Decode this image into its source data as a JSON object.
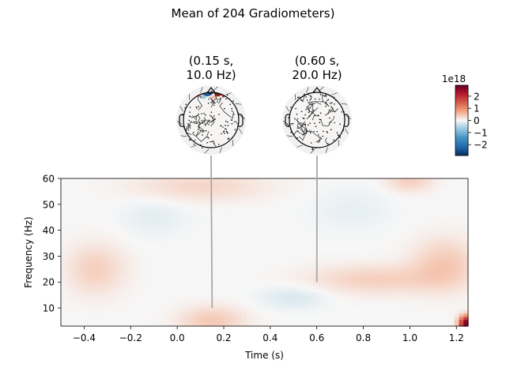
{
  "chart_data": {
    "type": "heatmap",
    "title": "Mean of 204 Gradiometers)",
    "xlabel": "Time (s)",
    "ylabel": "Frequency (Hz)",
    "xlim": [
      -0.5,
      1.25
    ],
    "ylim": [
      3,
      60
    ],
    "xticks": [
      -0.4,
      -0.2,
      0.0,
      0.2,
      0.4,
      0.6,
      0.8,
      1.0,
      1.2
    ],
    "xtick_labels": [
      "−0.4",
      "−0.2",
      "0.0",
      "0.2",
      "0.4",
      "0.6",
      "0.8",
      "1.0",
      "1.2"
    ],
    "yticks": [
      10,
      20,
      30,
      40,
      50,
      60
    ],
    "ytick_labels": [
      "10",
      "20",
      "30",
      "40",
      "50",
      "60"
    ],
    "colormap": "RdBu_r",
    "colorbar": {
      "multiplier": "1e18",
      "ticks": [
        2,
        1,
        0,
        -1,
        -2
      ],
      "tick_labels": [
        "2",
        "1",
        "0",
        "−1",
        "−2"
      ],
      "range": [
        -2.9,
        2.9
      ]
    },
    "blobs": [
      {
        "t": 0.15,
        "f": 5,
        "st": 0.1,
        "sf": 4,
        "a": 0.14
      },
      {
        "t": -0.35,
        "f": 25,
        "st": 0.09,
        "sf": 7,
        "a": 0.12
      },
      {
        "t": 0.1,
        "f": 57,
        "st": 0.2,
        "sf": 4,
        "a": 0.1
      },
      {
        "t": 1.0,
        "f": 59,
        "st": 0.07,
        "sf": 3,
        "a": 0.12
      },
      {
        "t": 0.85,
        "f": 21,
        "st": 0.2,
        "sf": 4,
        "a": 0.12
      },
      {
        "t": 1.15,
        "f": 27,
        "st": 0.1,
        "sf": 7,
        "a": 0.14
      },
      {
        "t": 0.5,
        "f": 14,
        "st": 0.1,
        "sf": 3,
        "a": -0.08
      },
      {
        "t": -0.1,
        "f": 45,
        "st": 0.1,
        "sf": 5,
        "a": -0.05
      },
      {
        "t": 0.75,
        "f": 48,
        "st": 0.12,
        "sf": 6,
        "a": -0.04
      },
      {
        "t": 1.24,
        "f": 4,
        "st": 0.02,
        "sf": 2,
        "a": 0.95
      }
    ],
    "topomaps": [
      {
        "title_line1": "(0.15 s,",
        "title_line2": "10.0 Hz)",
        "time": 0.15,
        "freq": 10.0,
        "pattern": "frontal-dipole"
      },
      {
        "title_line1": "(0.60 s,",
        "title_line2": "20.0 Hz)",
        "time": 0.6,
        "freq": 20.0,
        "pattern": "flat"
      }
    ]
  }
}
